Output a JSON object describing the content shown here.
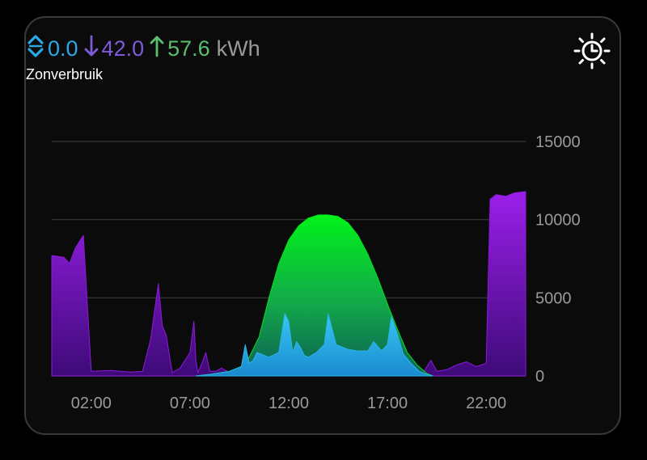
{
  "card": {
    "stats": [
      {
        "icon": "battery-arrows-icon",
        "value": "0.0",
        "color": "#29a9e8"
      },
      {
        "icon": "arrow-down-icon",
        "value": "42.0",
        "color": "#7e5bd8"
      },
      {
        "icon": "arrow-up-icon",
        "value": "57.6",
        "color": "#5cbf6e"
      }
    ],
    "unit": "kWh",
    "unit_color": "#9a9a9a",
    "subtitle": "Zonverbruik",
    "settings_icon": "sun-clock-icon"
  },
  "chart_data": {
    "type": "area",
    "ylim": [
      0,
      15000
    ],
    "y_ticks": [
      "15000",
      "10000",
      "5000",
      "0"
    ],
    "x_ticks": [
      "02:00",
      "07:00",
      "12:00",
      "17:00",
      "22:00"
    ],
    "xlim_hours": [
      0,
      24
    ],
    "series": [
      {
        "color": "#8a1ad8",
        "x": [
          0,
          0.6,
          0.9,
          1.2,
          1.6,
          2,
          3,
          4,
          4.6,
          5,
          5.4,
          5.6,
          5.8,
          6.1,
          6.5,
          7,
          7.2,
          7.3,
          7.4,
          7.6,
          7.8,
          8,
          8.3,
          8.6,
          9,
          18.8,
          19.2,
          19.5,
          20,
          20.5,
          21,
          21.5,
          22,
          22.1,
          22.2,
          22.5,
          23,
          23.4,
          24
        ],
        "y": [
          7700,
          7600,
          7200,
          8200,
          9000,
          300,
          350,
          250,
          300,
          2300,
          5900,
          3200,
          2600,
          200,
          500,
          1500,
          3500,
          1000,
          200,
          800,
          1500,
          300,
          300,
          500,
          200,
          200,
          1000,
          300,
          400,
          700,
          900,
          600,
          800,
          6000,
          11300,
          11600,
          11500,
          11700,
          11800
        ]
      },
      {
        "color": "#00e61a",
        "x": [
          7.3,
          8,
          9,
          9.6,
          10,
          10.5,
          11,
          11.5,
          12,
          12.5,
          13,
          13.5,
          14,
          14.5,
          15,
          15.5,
          16,
          16.5,
          17,
          17.5,
          18,
          18.5,
          19,
          19.3
        ],
        "y": [
          0,
          100,
          300,
          600,
          1200,
          2500,
          5000,
          7200,
          8700,
          9600,
          10100,
          10300,
          10300,
          10200,
          9800,
          9000,
          7800,
          6300,
          4600,
          3000,
          1500,
          700,
          150,
          0
        ]
      },
      {
        "color": "#28b4e6",
        "x": [
          7.3,
          8,
          9,
          9.6,
          9.8,
          10,
          10.2,
          10.4,
          11,
          11.5,
          11.8,
          12,
          12.2,
          12.4,
          12.6,
          12.8,
          13,
          13.4,
          13.8,
          14,
          14.2,
          14.4,
          15,
          15.5,
          16,
          16.3,
          16.7,
          17,
          17.2,
          17.5,
          17.8,
          18.2,
          18.6,
          19,
          19.3
        ],
        "y": [
          0,
          100,
          300,
          600,
          2000,
          800,
          1000,
          1500,
          1200,
          1500,
          4000,
          3500,
          1500,
          2200,
          1800,
          1300,
          1200,
          1500,
          2000,
          4000,
          3000,
          2000,
          1700,
          1600,
          1600,
          2200,
          1600,
          2000,
          3800,
          2700,
          1400,
          800,
          300,
          100,
          0
        ]
      }
    ]
  }
}
